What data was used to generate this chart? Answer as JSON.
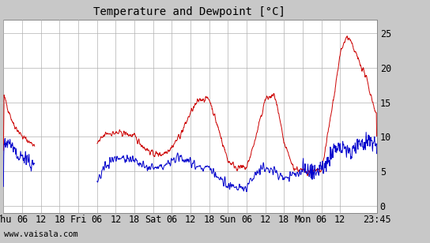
{
  "title": "Temperature and Dewpoint [°C]",
  "x_tick_labels": [
    "Thu",
    "06",
    "12",
    "18",
    "Fri",
    "06",
    "12",
    "18",
    "Sat",
    "06",
    "12",
    "18",
    "Sun",
    "06",
    "12",
    "18",
    "Mon",
    "06",
    "12",
    "23:45"
  ],
  "ylim": [
    -1,
    27
  ],
  "yticks": [
    0,
    5,
    10,
    15,
    20,
    25
  ],
  "background_color": "#ffffff",
  "outer_background": "#c8c8c8",
  "temp_color": "#cc0000",
  "dew_color": "#0000cc",
  "grid_color": "#b0b0b0",
  "watermark": "www.vaisala.com",
  "title_fontsize": 10,
  "tick_fontsize": 8.5
}
